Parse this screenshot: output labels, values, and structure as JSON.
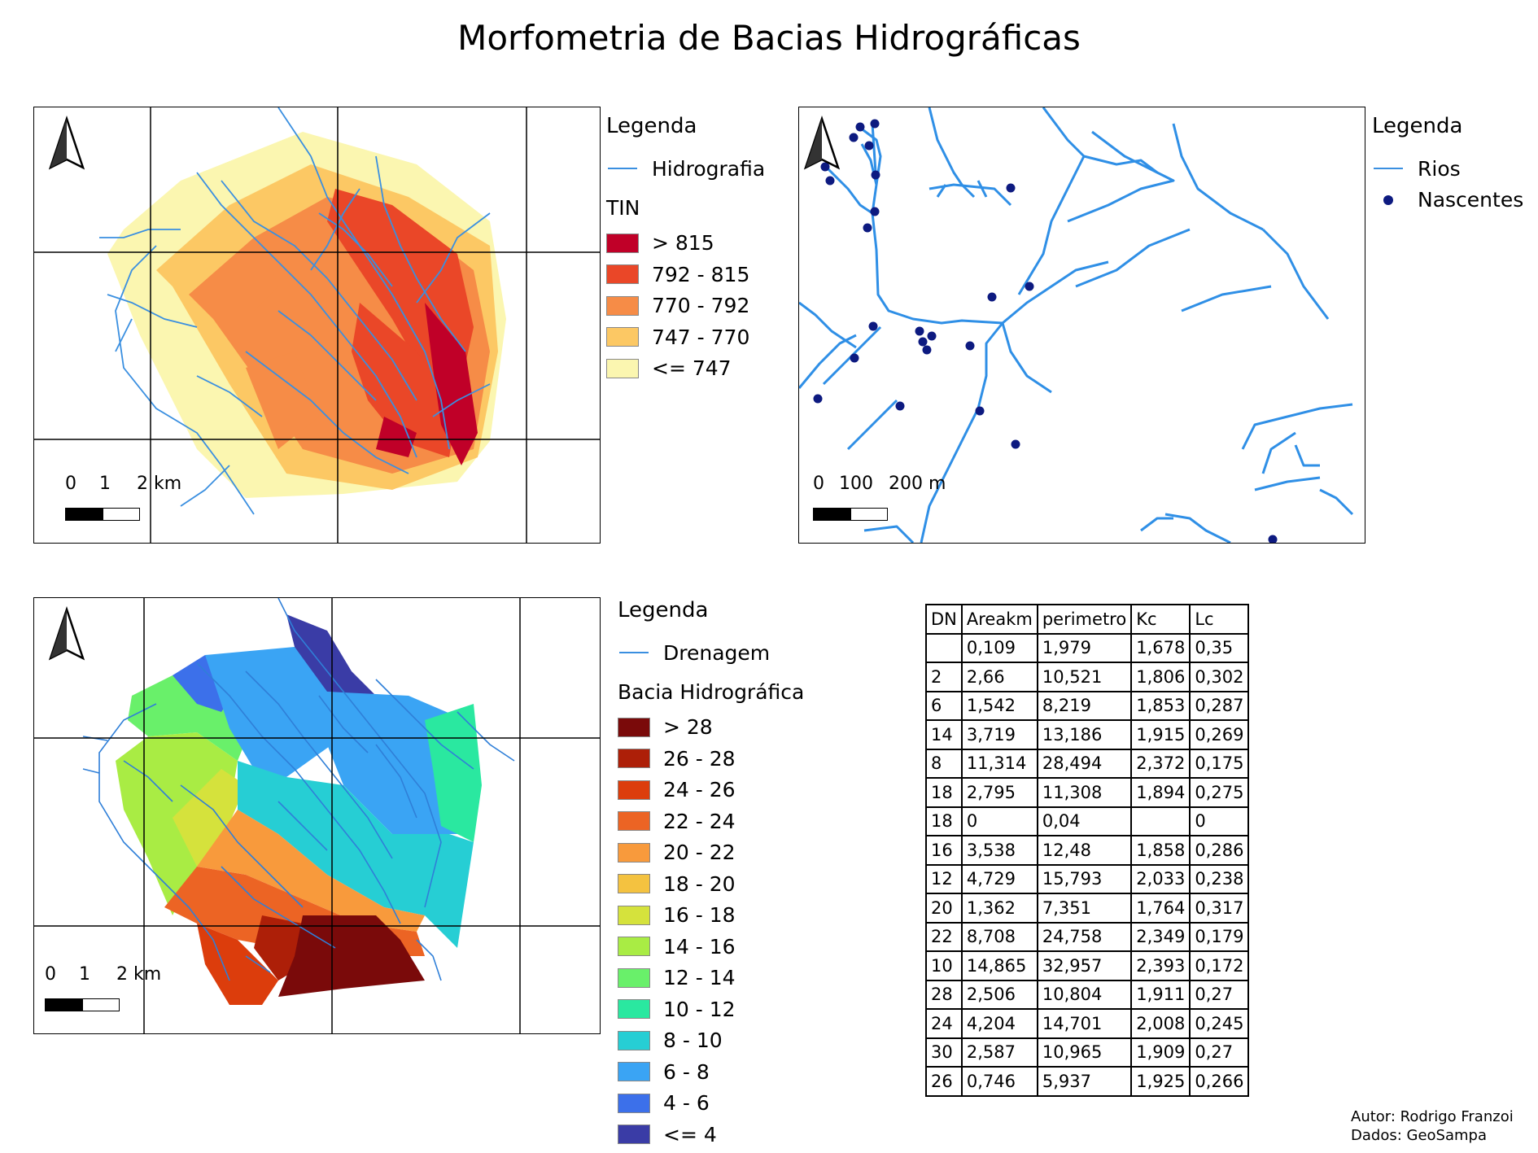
{
  "title": "Morfometria de Bacias Hidrográficas",
  "map1": {
    "legend_title": "Legenda",
    "line_label": "Hidrografia",
    "ramp_title": "TIN",
    "classes": [
      {
        "label": "> 815",
        "color": "#c00028"
      },
      {
        "label": "792 - 815",
        "color": "#ea4728"
      },
      {
        "label": "770 - 792",
        "color": "#f68c47"
      },
      {
        "label": "747 - 770",
        "color": "#fcc864"
      },
      {
        "label": "<= 747",
        "color": "#fbf6b0"
      }
    ],
    "scale_labels": [
      "0",
      "1",
      "2 km"
    ]
  },
  "map2": {
    "legend_title": "Legenda",
    "line_label": "Rios",
    "point_label": "Nascentes",
    "scale_labels": [
      "0",
      "100",
      "200 m"
    ]
  },
  "map3": {
    "legend_title": "Legenda",
    "line_label": "Drenagem",
    "ramp_title": "Bacia Hidrográfica",
    "classes": [
      {
        "label": "> 28",
        "color": "#7a0a0a"
      },
      {
        "label": "26 - 28",
        "color": "#ad1f08"
      },
      {
        "label": "24 - 26",
        "color": "#dc3d0c"
      },
      {
        "label": "22 - 24",
        "color": "#ec6424"
      },
      {
        "label": "20 - 22",
        "color": "#f89a3c"
      },
      {
        "label": "18 - 20",
        "color": "#f4c240"
      },
      {
        "label": "16 - 18",
        "color": "#d5e23c"
      },
      {
        "label": "14 - 16",
        "color": "#a9ec44"
      },
      {
        "label": "12 - 14",
        "color": "#69f06a"
      },
      {
        "label": "10 - 12",
        "color": "#2ae8a0"
      },
      {
        "label": "8 - 10",
        "color": "#26ced4"
      },
      {
        "label": "6 - 8",
        "color": "#3aa4f4"
      },
      {
        "label": "4 - 6",
        "color": "#3c70ea"
      },
      {
        "label": "<= 4",
        "color": "#3a3ca6"
      }
    ],
    "scale_labels": [
      "0",
      "1",
      "2 km"
    ]
  },
  "table": {
    "headers": [
      "DN",
      "Areakm",
      "perimetro",
      "Kc",
      "Lc"
    ],
    "rows": [
      [
        "",
        "0,109",
        "1,979",
        "1,678",
        "0,35"
      ],
      [
        "2",
        "2,66",
        "10,521",
        "1,806",
        "0,302"
      ],
      [
        "6",
        "1,542",
        "8,219",
        "1,853",
        "0,287"
      ],
      [
        "14",
        "3,719",
        "13,186",
        "1,915",
        "0,269"
      ],
      [
        "8",
        "11,314",
        "28,494",
        "2,372",
        "0,175"
      ],
      [
        "18",
        "2,795",
        "11,308",
        "1,894",
        "0,275"
      ],
      [
        "18",
        "0",
        "0,04",
        "",
        "0"
      ],
      [
        "16",
        "3,538",
        "12,48",
        "1,858",
        "0,286"
      ],
      [
        "12",
        "4,729",
        "15,793",
        "2,033",
        "0,238"
      ],
      [
        "20",
        "1,362",
        "7,351",
        "1,764",
        "0,317"
      ],
      [
        "22",
        "8,708",
        "24,758",
        "2,349",
        "0,179"
      ],
      [
        "10",
        "14,865",
        "32,957",
        "2,393",
        "0,172"
      ],
      [
        "28",
        "2,506",
        "10,804",
        "1,911",
        "0,27"
      ],
      [
        "24",
        "4,204",
        "14,701",
        "2,008",
        "0,245"
      ],
      [
        "30",
        "2,587",
        "10,965",
        "1,909",
        "0,27"
      ],
      [
        "26",
        "0,746",
        "5,937",
        "1,925",
        "0,266"
      ]
    ]
  },
  "credits": {
    "author": "Autor: Rodrigo Franzoi",
    "data": "Dados: GeoSampa"
  }
}
